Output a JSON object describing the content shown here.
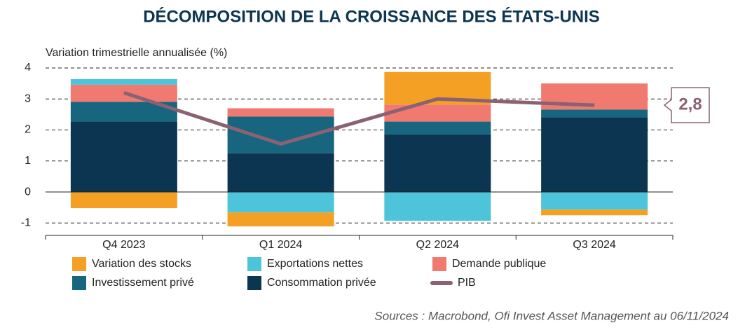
{
  "chart_data": {
    "type": "bar",
    "title": "DÉCOMPOSITION DE LA CROISSANCE DES ÉTATS-UNIS",
    "y_label": "Variation trimestrielle annualisée (%)",
    "source": "Sources : Macrobond, Ofi Invest Asset Management au 06/11/2024",
    "categories": [
      "Q4 2023",
      "Q1 2024",
      "Q2 2024",
      "Q3 2024"
    ],
    "stacked": true,
    "series": [
      {
        "name": "Variation des stocks",
        "color": "#f4a024",
        "values": [
          -0.52,
          -0.45,
          1.05,
          -0.18
        ]
      },
      {
        "name": "Exportations nettes",
        "color": "#4dc4d9",
        "values": [
          0.18,
          -0.66,
          -0.93,
          -0.57
        ]
      },
      {
        "name": "Demande publique",
        "color": "#f07a70",
        "values": [
          0.55,
          0.27,
          0.55,
          0.84
        ]
      },
      {
        "name": "Investissement privé",
        "color": "#17657f",
        "values": [
          0.64,
          1.18,
          0.41,
          0.25
        ]
      },
      {
        "name": "Consommation privée",
        "color": "#0b3550",
        "values": [
          2.27,
          1.25,
          1.86,
          2.41
        ]
      },
      {
        "name": "PIB",
        "color": "#8a6273",
        "type": "line",
        "values": [
          3.2,
          1.55,
          3.0,
          2.8
        ],
        "value_labels": [
          null,
          null,
          null,
          "2,8"
        ]
      }
    ],
    "ylim": [
      -1.4,
      4
    ],
    "yticks": [
      -1,
      0,
      1,
      2,
      3,
      4
    ],
    "grid": true
  }
}
